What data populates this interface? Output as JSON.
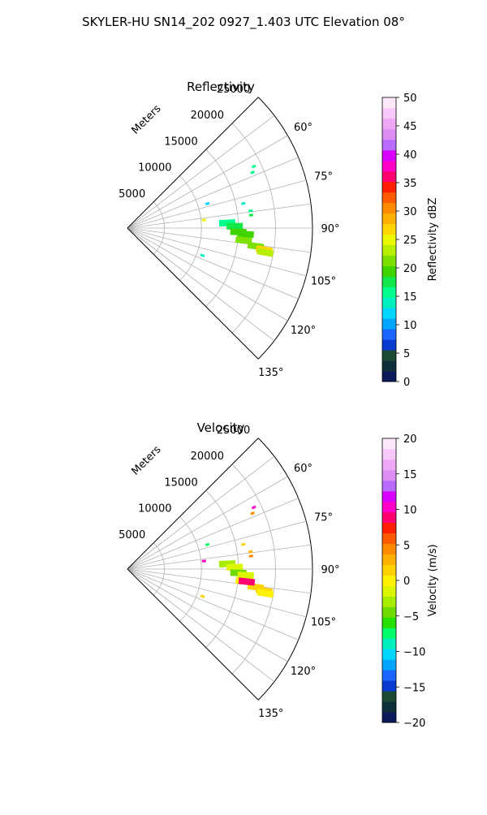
{
  "suptitle": "SKYLER-HU  SN14_202  0927_1.403 UTC Elevation 08°",
  "chart_data": [
    {
      "type": "polar-sector",
      "title": "Reflectivity",
      "radial_label": "Meters",
      "theta_range_deg": [
        45,
        135
      ],
      "theta_ticks": [
        60,
        75,
        90,
        105,
        120,
        135
      ],
      "theta_tick_labels": [
        "60°",
        "75°",
        "90°",
        "105°",
        "120°",
        "135°"
      ],
      "r_max": 25000,
      "r_ticks": [
        5000,
        10000,
        15000,
        20000,
        25000
      ],
      "r_tick_labels": [
        "5000",
        "10000",
        "15000",
        "20000",
        "25000"
      ],
      "grid": true,
      "colorbar": {
        "label": "Reflectivity dBZ",
        "range": [
          0,
          50
        ],
        "ticks": [
          "0",
          "5",
          "10",
          "15",
          "20",
          "25",
          "30",
          "35",
          "40",
          "45",
          "50"
        ]
      },
      "echoes": [
        {
          "theta": 87,
          "r": 13500,
          "value": 16
        },
        {
          "theta": 89,
          "r": 14500,
          "value": 17
        },
        {
          "theta": 92,
          "r": 15000,
          "value": 20
        },
        {
          "theta": 93,
          "r": 16000,
          "value": 19
        },
        {
          "theta": 96,
          "r": 15800,
          "value": 21
        },
        {
          "theta": 98,
          "r": 17500,
          "value": 22
        },
        {
          "theta": 99,
          "r": 18700,
          "value": 26
        },
        {
          "theta": 100,
          "r": 18900,
          "value": 24
        },
        {
          "theta": 82,
          "r": 16800,
          "value": 15
        },
        {
          "theta": 78,
          "r": 16000,
          "value": 14
        },
        {
          "theta": 73,
          "r": 11300,
          "value": 12
        },
        {
          "theta": 64,
          "r": 19000,
          "value": 16
        },
        {
          "theta": 66,
          "r": 18500,
          "value": 15
        },
        {
          "theta": 84,
          "r": 10400,
          "value": 25
        },
        {
          "theta": 110,
          "r": 10800,
          "value": 14
        },
        {
          "theta": 84,
          "r": 16800,
          "value": 18
        }
      ]
    },
    {
      "type": "polar-sector",
      "title": "Velocity",
      "radial_label": "Meters",
      "theta_range_deg": [
        45,
        135
      ],
      "theta_ticks": [
        60,
        75,
        90,
        105,
        120,
        135
      ],
      "theta_tick_labels": [
        "60°",
        "75°",
        "90°",
        "105°",
        "120°",
        "135°"
      ],
      "r_max": 25000,
      "r_ticks": [
        5000,
        10000,
        15000,
        20000,
        25000
      ],
      "r_tick_labels": [
        "5000",
        "10000",
        "15000",
        "20000",
        "25000"
      ],
      "grid": true,
      "colorbar": {
        "label": "Velocity (m/s)",
        "range": [
          -20,
          20
        ],
        "ticks": [
          "−20",
          "−15",
          "−10",
          "−5",
          "0",
          "5",
          "10",
          "15",
          "20"
        ]
      },
      "echoes": [
        {
          "theta": 87,
          "r": 13500,
          "value": -3
        },
        {
          "theta": 89,
          "r": 14500,
          "value": -2
        },
        {
          "theta": 92,
          "r": 15000,
          "value": -4
        },
        {
          "theta": 93,
          "r": 16000,
          "value": -1
        },
        {
          "theta": 96,
          "r": 15800,
          "value": 0
        },
        {
          "theta": 98,
          "r": 17500,
          "value": 1
        },
        {
          "theta": 99,
          "r": 18700,
          "value": 1
        },
        {
          "theta": 100,
          "r": 18900,
          "value": 0
        },
        {
          "theta": 96,
          "r": 16200,
          "value": 9
        },
        {
          "theta": 82,
          "r": 16800,
          "value": 3
        },
        {
          "theta": 78,
          "r": 16000,
          "value": 2
        },
        {
          "theta": 73,
          "r": 11300,
          "value": -8
        },
        {
          "theta": 64,
          "r": 19000,
          "value": 10
        },
        {
          "theta": 66,
          "r": 18500,
          "value": 4
        },
        {
          "theta": 84,
          "r": 10400,
          "value": 10
        },
        {
          "theta": 110,
          "r": 10800,
          "value": 2
        },
        {
          "theta": 84,
          "r": 16800,
          "value": 4
        }
      ]
    }
  ]
}
